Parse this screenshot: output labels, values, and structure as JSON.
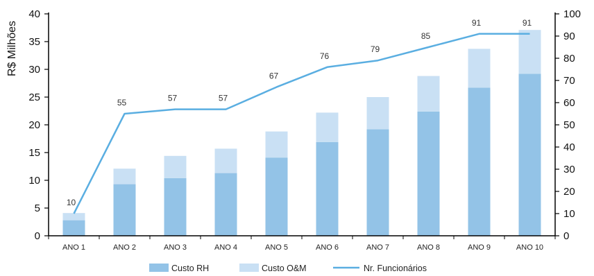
{
  "chart_data": {
    "type": "bar",
    "categories": [
      "ANO 1",
      "ANO 2",
      "ANO 3",
      "ANO 4",
      "ANO 5",
      "ANO 6",
      "ANO 7",
      "ANO 8",
      "ANO 9",
      "ANO 10"
    ],
    "ylabel": "R$ Milhões",
    "ylim": [
      0,
      40
    ],
    "yticks": [
      0,
      5,
      10,
      15,
      20,
      25,
      30,
      35,
      40
    ],
    "y2lim": [
      0,
      100
    ],
    "y2ticks": [
      0,
      10,
      20,
      30,
      40,
      50,
      60,
      70,
      80,
      90,
      100
    ],
    "stacked": true,
    "grid": false,
    "legend_position": "bottom",
    "series": [
      {
        "name": "Custo RH",
        "type": "bar",
        "axis": "left",
        "color": "#93c3e7",
        "values": [
          2.8,
          9.3,
          10.4,
          11.3,
          14.1,
          16.9,
          19.2,
          22.4,
          26.7,
          29.2
        ]
      },
      {
        "name": "Custo  O&M",
        "type": "bar",
        "axis": "left",
        "color": "#c9e0f4",
        "values": [
          1.3,
          2.8,
          4.0,
          4.4,
          4.7,
          5.3,
          5.8,
          6.4,
          7.0,
          7.9
        ]
      },
      {
        "name": "Nr. Funcionários",
        "type": "line",
        "axis": "right",
        "color": "#5aaee1",
        "values": [
          10,
          55,
          57,
          57,
          67,
          76,
          79,
          85,
          91,
          91
        ]
      }
    ]
  }
}
